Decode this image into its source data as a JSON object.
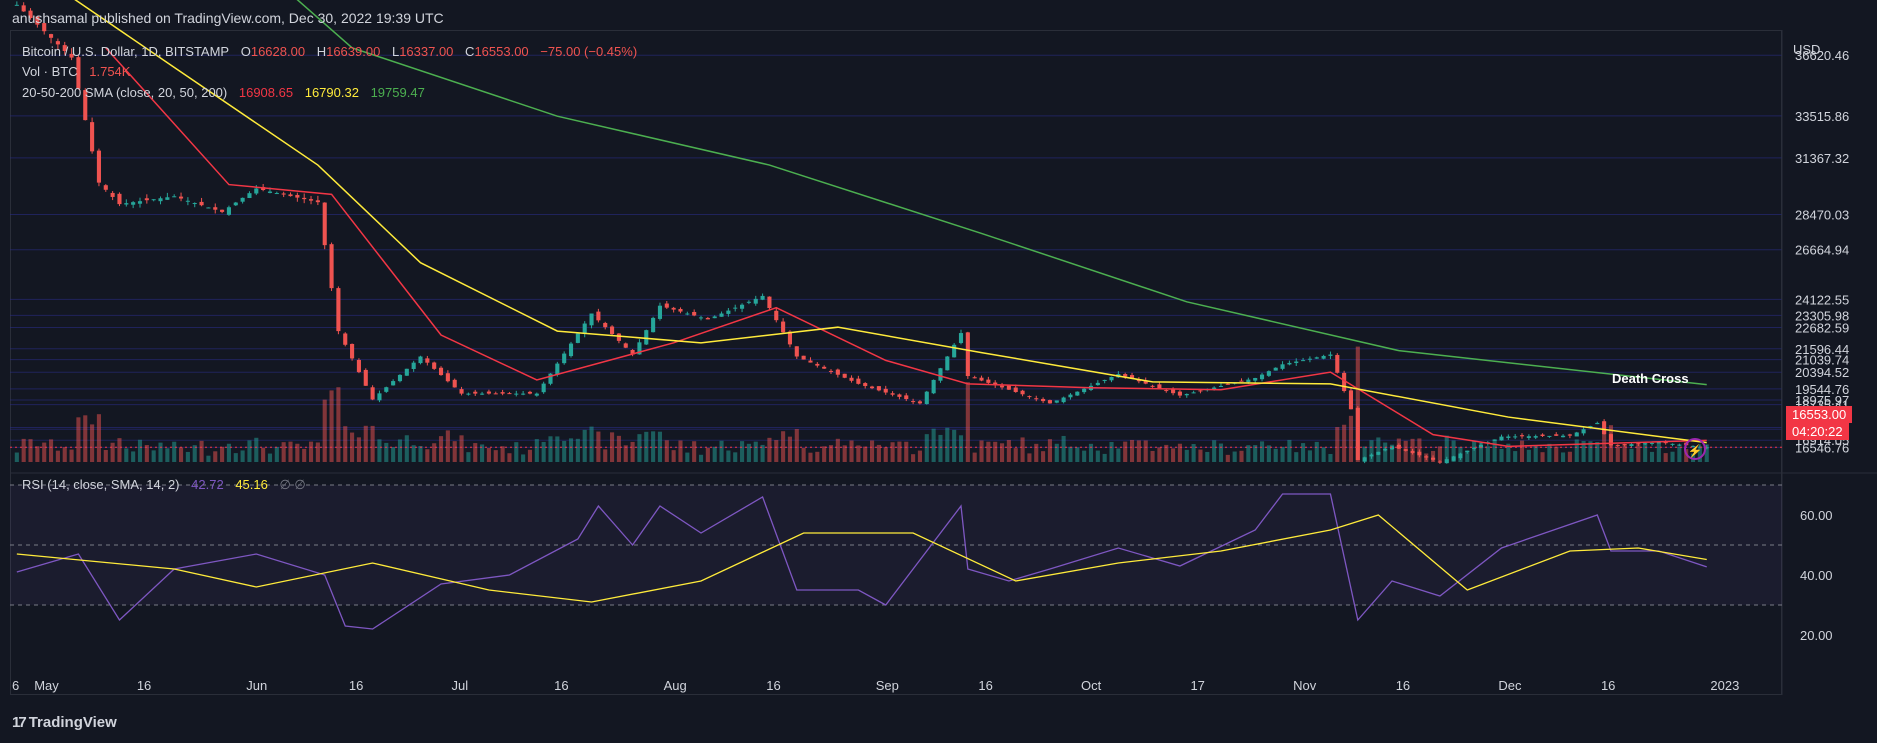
{
  "header": {
    "publisher": "anushsamal published on TradingView.com, Dec 30, 2022 19:39 UTC"
  },
  "symbol_legend": {
    "name": "Bitcoin / U.S. Dollar, 1D, BITSTAMP",
    "open_label": "O",
    "open": "16628.00",
    "high_label": "H",
    "high": "16639.00",
    "low_label": "L",
    "low": "16337.00",
    "close_label": "C",
    "close": "16553.00",
    "change": "−75.00 (−0.45%)"
  },
  "vol_legend": {
    "label": "Vol · BTC",
    "value": "1.754K"
  },
  "sma_legend": {
    "label": "20-50-200 SMA (close, 20, 50, 200)",
    "v20": "16908.65",
    "v50": "16790.32",
    "v200": "19759.47"
  },
  "rsi_legend": {
    "label": "RSI (14, close, SMA, 14, 2)",
    "rsi": "42.72",
    "sma": "45.16",
    "extra": "∅ ∅"
  },
  "currency": "USD",
  "price_axis_labels": [
    "36620.46",
    "33515.86",
    "31367.32",
    "28470.03",
    "26664.94",
    "24122.55",
    "23305.98",
    "22682.59",
    "21596.44",
    "21039.74",
    "20394.52",
    "19544.76",
    "18975.97",
    "18735.41",
    "17565.84",
    "17476.14",
    "16914.05",
    "16546.76"
  ],
  "last_price_tag": {
    "price": "16553.00",
    "countdown": "04:20:22"
  },
  "rsi_axis_labels": [
    "60.00",
    "40.00",
    "20.00"
  ],
  "time_axis_labels": [
    "6",
    "May",
    "16",
    "Jun",
    "16",
    "Jul",
    "16",
    "Aug",
    "16",
    "Sep",
    "16",
    "Oct",
    "17",
    "Nov",
    "16",
    "Dec",
    "16",
    "2023"
  ],
  "annotation": "Death Cross",
  "footer": {
    "brand": "TradingView"
  },
  "colors": {
    "up": "#26a69a",
    "down": "#ef5350",
    "sma20": "#f23645",
    "sma50": "#ffeb3b",
    "sma200": "#4caf50",
    "rsi": "#7e57c2",
    "rsi_sma": "#ffeb3b",
    "background": "#131722"
  },
  "chart_data": {
    "type": "candlestick",
    "title": "Bitcoin / U.S. Dollar, 1D, BITSTAMP",
    "x_range": [
      "2022-04-26",
      "2023-01-10"
    ],
    "ylim": [
      15800,
      37400
    ],
    "rsi_ylim": [
      10,
      70
    ],
    "rsi_bands": [
      30,
      70
    ],
    "rsi_midline": 50,
    "price_series": [
      {
        "date": "2022-04-27",
        "close": 39200
      },
      {
        "date": "2022-05-05",
        "close": 36500
      },
      {
        "date": "2022-05-09",
        "close": 30100
      },
      {
        "date": "2022-05-12",
        "close": 29000
      },
      {
        "date": "2022-05-20",
        "close": 29400
      },
      {
        "date": "2022-05-27",
        "close": 28600
      },
      {
        "date": "2022-06-01",
        "close": 29800
      },
      {
        "date": "2022-06-10",
        "close": 29100
      },
      {
        "date": "2022-06-13",
        "close": 22500
      },
      {
        "date": "2022-06-18",
        "close": 19000
      },
      {
        "date": "2022-06-25",
        "close": 21200
      },
      {
        "date": "2022-07-01",
        "close": 19300
      },
      {
        "date": "2022-07-12",
        "close": 19300
      },
      {
        "date": "2022-07-20",
        "close": 23400
      },
      {
        "date": "2022-07-26",
        "close": 21300
      },
      {
        "date": "2022-07-30",
        "close": 23800
      },
      {
        "date": "2022-08-06",
        "close": 23100
      },
      {
        "date": "2022-08-14",
        "close": 24300
      },
      {
        "date": "2022-08-19",
        "close": 21200
      },
      {
        "date": "2022-08-28",
        "close": 19800
      },
      {
        "date": "2022-09-06",
        "close": 18800
      },
      {
        "date": "2022-09-12",
        "close": 22400
      },
      {
        "date": "2022-09-13",
        "close": 20200
      },
      {
        "date": "2022-09-19",
        "close": 19500
      },
      {
        "date": "2022-09-25",
        "close": 18800
      },
      {
        "date": "2022-10-05",
        "close": 20300
      },
      {
        "date": "2022-10-14",
        "close": 19200
      },
      {
        "date": "2022-10-25",
        "close": 20100
      },
      {
        "date": "2022-10-29",
        "close": 20800
      },
      {
        "date": "2022-11-05",
        "close": 21300
      },
      {
        "date": "2022-11-08",
        "close": 18500
      },
      {
        "date": "2022-11-09",
        "close": 15900
      },
      {
        "date": "2022-11-14",
        "close": 16600
      },
      {
        "date": "2022-11-21",
        "close": 15800
      },
      {
        "date": "2022-11-30",
        "close": 17100
      },
      {
        "date": "2022-12-10",
        "close": 17150
      },
      {
        "date": "2022-12-14",
        "close": 17800
      },
      {
        "date": "2022-12-16",
        "close": 16650
      },
      {
        "date": "2022-12-23",
        "close": 16800
      },
      {
        "date": "2022-12-30",
        "close": 16553
      }
    ],
    "sma": [
      {
        "name": "20",
        "values": [
          {
            "date": "2022-05-10",
            "v": 37000
          },
          {
            "date": "2022-05-28",
            "v": 30000
          },
          {
            "date": "2022-06-12",
            "v": 29500
          },
          {
            "date": "2022-06-28",
            "v": 22300
          },
          {
            "date": "2022-07-12",
            "v": 20000
          },
          {
            "date": "2022-08-01",
            "v": 21900
          },
          {
            "date": "2022-08-16",
            "v": 23700
          },
          {
            "date": "2022-09-01",
            "v": 21000
          },
          {
            "date": "2022-09-13",
            "v": 19800
          },
          {
            "date": "2022-10-01",
            "v": 19600
          },
          {
            "date": "2022-10-20",
            "v": 19500
          },
          {
            "date": "2022-11-05",
            "v": 20400
          },
          {
            "date": "2022-11-20",
            "v": 17200
          },
          {
            "date": "2022-12-01",
            "v": 16600
          },
          {
            "date": "2022-12-30",
            "v": 16908.65
          }
        ]
      },
      {
        "name": "50",
        "values": [
          {
            "date": "2022-04-27",
            "v": 41500
          },
          {
            "date": "2022-05-20",
            "v": 36000
          },
          {
            "date": "2022-06-10",
            "v": 31000
          },
          {
            "date": "2022-06-25",
            "v": 26000
          },
          {
            "date": "2022-07-15",
            "v": 22500
          },
          {
            "date": "2022-08-05",
            "v": 21900
          },
          {
            "date": "2022-08-25",
            "v": 22700
          },
          {
            "date": "2022-09-15",
            "v": 21400
          },
          {
            "date": "2022-10-10",
            "v": 19900
          },
          {
            "date": "2022-11-05",
            "v": 19800
          },
          {
            "date": "2022-12-01",
            "v": 18100
          },
          {
            "date": "2022-12-30",
            "v": 16790.32
          }
        ]
      },
      {
        "name": "200",
        "values": [
          {
            "date": "2022-05-20",
            "v": 45000
          },
          {
            "date": "2022-06-15",
            "v": 37000
          },
          {
            "date": "2022-07-15",
            "v": 33500
          },
          {
            "date": "2022-08-15",
            "v": 31000
          },
          {
            "date": "2022-09-15",
            "v": 27500
          },
          {
            "date": "2022-10-15",
            "v": 24000
          },
          {
            "date": "2022-11-15",
            "v": 21500
          },
          {
            "date": "2022-12-30",
            "v": 19759.47
          }
        ]
      }
    ],
    "rsi": [
      {
        "date": "2022-04-27",
        "v": 41
      },
      {
        "date": "2022-05-06",
        "v": 47
      },
      {
        "date": "2022-05-12",
        "v": 25
      },
      {
        "date": "2022-05-20",
        "v": 42
      },
      {
        "date": "2022-06-01",
        "v": 47
      },
      {
        "date": "2022-06-11",
        "v": 40
      },
      {
        "date": "2022-06-14",
        "v": 23
      },
      {
        "date": "2022-06-18",
        "v": 22
      },
      {
        "date": "2022-06-28",
        "v": 37
      },
      {
        "date": "2022-07-08",
        "v": 40
      },
      {
        "date": "2022-07-18",
        "v": 52
      },
      {
        "date": "2022-07-21",
        "v": 63
      },
      {
        "date": "2022-07-26",
        "v": 50
      },
      {
        "date": "2022-07-30",
        "v": 63
      },
      {
        "date": "2022-08-05",
        "v": 54
      },
      {
        "date": "2022-08-14",
        "v": 66
      },
      {
        "date": "2022-08-19",
        "v": 35
      },
      {
        "date": "2022-08-28",
        "v": 35
      },
      {
        "date": "2022-09-01",
        "v": 30
      },
      {
        "date": "2022-09-12",
        "v": 63
      },
      {
        "date": "2022-09-13",
        "v": 42
      },
      {
        "date": "2022-09-19",
        "v": 38
      },
      {
        "date": "2022-09-25",
        "v": 42
      },
      {
        "date": "2022-10-05",
        "v": 49
      },
      {
        "date": "2022-10-14",
        "v": 43
      },
      {
        "date": "2022-10-25",
        "v": 55
      },
      {
        "date": "2022-10-29",
        "v": 67
      },
      {
        "date": "2022-11-05",
        "v": 67
      },
      {
        "date": "2022-11-09",
        "v": 25
      },
      {
        "date": "2022-11-14",
        "v": 38
      },
      {
        "date": "2022-11-21",
        "v": 33
      },
      {
        "date": "2022-11-30",
        "v": 49
      },
      {
        "date": "2022-12-14",
        "v": 60
      },
      {
        "date": "2022-12-16",
        "v": 48
      },
      {
        "date": "2022-12-23",
        "v": 48
      },
      {
        "date": "2022-12-30",
        "v": 42.72
      }
    ],
    "rsi_sma": [
      {
        "date": "2022-04-27",
        "v": 47
      },
      {
        "date": "2022-05-20",
        "v": 42
      },
      {
        "date": "2022-06-01",
        "v": 36
      },
      {
        "date": "2022-06-18",
        "v": 44
      },
      {
        "date": "2022-07-05",
        "v": 35
      },
      {
        "date": "2022-07-20",
        "v": 31
      },
      {
        "date": "2022-08-05",
        "v": 38
      },
      {
        "date": "2022-08-20",
        "v": 54
      },
      {
        "date": "2022-09-05",
        "v": 54
      },
      {
        "date": "2022-09-20",
        "v": 38
      },
      {
        "date": "2022-10-05",
        "v": 44
      },
      {
        "date": "2022-10-20",
        "v": 48
      },
      {
        "date": "2022-11-05",
        "v": 55
      },
      {
        "date": "2022-11-12",
        "v": 60
      },
      {
        "date": "2022-11-25",
        "v": 35
      },
      {
        "date": "2022-12-10",
        "v": 48
      },
      {
        "date": "2022-12-20",
        "v": 49
      },
      {
        "date": "2022-12-30",
        "v": 45.16
      }
    ],
    "legend": "top-left",
    "grid": true
  }
}
